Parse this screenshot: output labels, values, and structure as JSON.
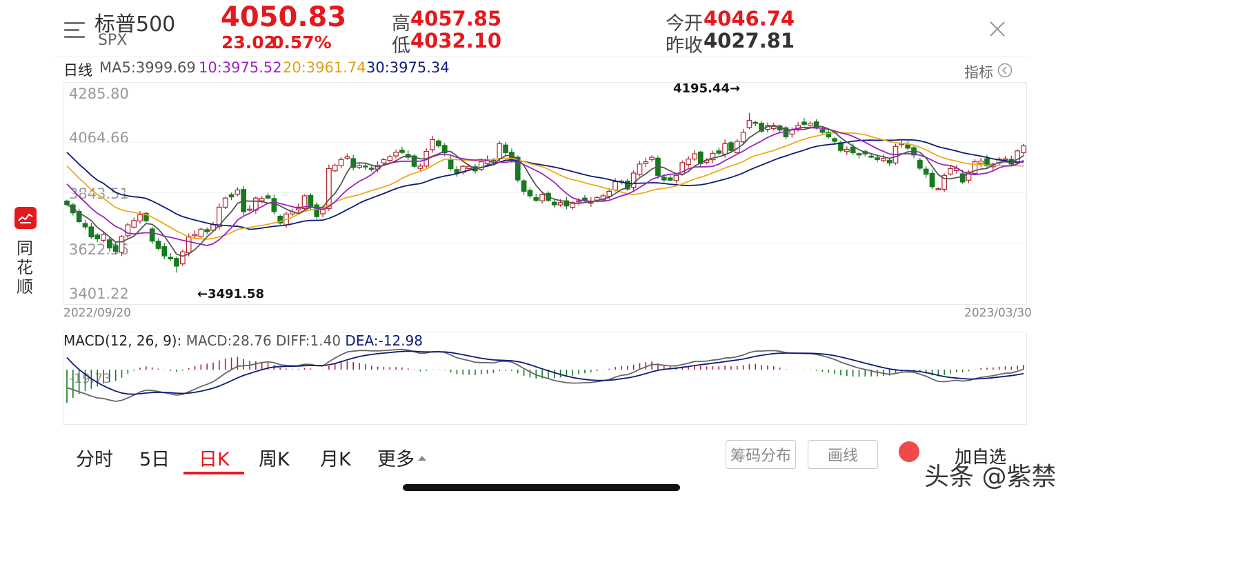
{
  "header": {
    "name": "标普500",
    "code": "SPX",
    "price": "4050.83",
    "change": "23.02",
    "change_pct": "0.57%",
    "high_label": "高",
    "high": "4057.85",
    "low_label": "低",
    "low": "4032.10",
    "open_label": "今开",
    "open": "4046.74",
    "prev_close_label": "昨收",
    "prev_close": "4027.81"
  },
  "ma_bar": {
    "period": "日线",
    "ma5": "MA5:3999.69",
    "ma10": "10:3975.52",
    "ma20": "20:3961.74",
    "ma30": "30:3975.34",
    "indicator_label": "指标"
  },
  "colors": {
    "up": "#b2202a",
    "down": "#167a1e",
    "ma5": "#555555",
    "ma10": "#9b22c7",
    "ma20": "#efaa16",
    "ma30": "#0d1a7a",
    "accent_red": "#e4191d"
  },
  "side_app": {
    "logo": "同花顺-logo",
    "chars": [
      "同",
      "花",
      "顺"
    ]
  },
  "chart_data": {
    "type": "candlestick",
    "y_ticks": [
      "4285.80",
      "4064.66",
      "3843.51",
      "3622.36",
      "3401.22"
    ],
    "ylim": [
      3401.22,
      4285.8
    ],
    "x_start": "2022/09/20",
    "x_end": "2023/03/30",
    "max_annotation": "4195.44→",
    "min_annotation": "←3491.58",
    "max_value": 4195.44,
    "min_value": 3491.58,
    "close_series": [
      3792,
      3755,
      3716,
      3693,
      3649,
      3640,
      3660,
      3600,
      3585,
      3650,
      3702,
      3721,
      3747,
      3720,
      3630,
      3598,
      3565,
      3552,
      3520,
      3583,
      3650,
      3660,
      3683,
      3672,
      3702,
      3780,
      3820,
      3825,
      3856,
      3760,
      3771,
      3820,
      3818,
      3820,
      3760,
      3710,
      3750,
      3760,
      3780,
      3830,
      3780,
      3738,
      3770,
      3950,
      3965,
      3990,
      4002,
      3955,
      3964,
      3958,
      3946,
      3965,
      3990,
      4002,
      4022,
      4021,
      4000,
      3960,
      3961,
      4026,
      4078,
      4050,
      4020,
      3950,
      3930,
      3960,
      3960,
      3940,
      3980,
      3990,
      3985,
      4060,
      4020,
      3990,
      3900,
      3850,
      3830,
      3810,
      3835,
      3810,
      3790,
      3800,
      3785,
      3800,
      3808,
      3810,
      3807,
      3822,
      3830,
      3850,
      3892,
      3895,
      3860,
      3930,
      3970,
      3980,
      4000,
      3920,
      3900,
      3899,
      3920,
      3976,
      3992,
      4015,
      3972,
      3987,
      4017,
      4018,
      4060,
      4030,
      4070,
      4110,
      4162,
      4150,
      4115,
      4140,
      4136,
      4120,
      4090,
      4120,
      4140,
      4145,
      4150,
      4130,
      4110,
      4090,
      4070,
      4030,
      4035,
      4020,
      4010,
      4015,
      4003,
      3990,
      3995,
      3975,
      4048,
      4060,
      4040,
      4010,
      3952,
      3925,
      3870,
      3861,
      3920,
      3950,
      3951,
      3891,
      3935,
      3980,
      3983,
      3962,
      3970,
      3992,
      3993,
      3970,
      4028,
      4050
    ],
    "macd": {
      "label": "MACD(12, 26, 9):",
      "macd": "MACD:28.76",
      "diff": "DIFF:1.40",
      "dea": "DEA:-12.98",
      "y_tick": "-19.73"
    }
  },
  "tabs": [
    {
      "label": "分时",
      "active": false
    },
    {
      "label": "5日",
      "active": false
    },
    {
      "label": "日K",
      "active": true
    },
    {
      "label": "周K",
      "active": false
    },
    {
      "label": "月K",
      "active": false
    },
    {
      "label": "更多",
      "active": false
    }
  ],
  "buttons": {
    "chip_dist": "筹码分布",
    "draw_line": "画线",
    "add_watch": "加自选"
  },
  "watermark": "头条 @紫禁"
}
